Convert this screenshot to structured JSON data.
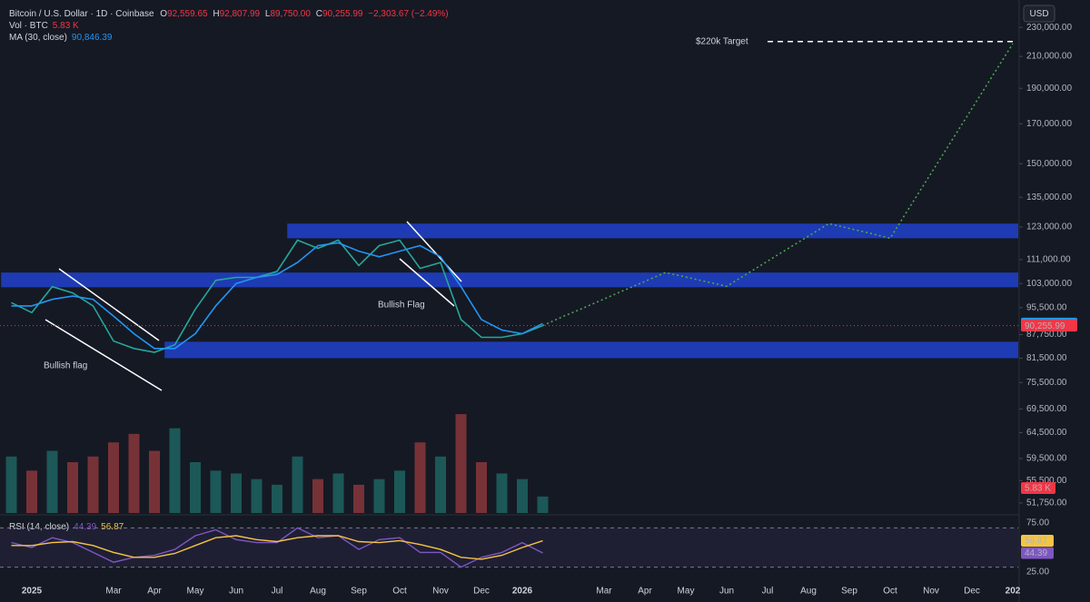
{
  "header": {
    "symbol": "Bitcoin / U.S. Dollar · 1D · Coinbase",
    "ohlc": [
      {
        "key": "O",
        "value": "92,559.65"
      },
      {
        "key": "H",
        "value": "92,807.99"
      },
      {
        "key": "L",
        "value": "89,750.00"
      },
      {
        "key": "C",
        "value": "90,255.99"
      }
    ],
    "change": "−2,303.67 (−2.49%)",
    "volume_title": "Vol · BTC",
    "volume": "5.83 K",
    "ma_title": "MA (30, close)",
    "ma": "90,846.39",
    "currency": "USD"
  },
  "chart_data": {
    "type": "line",
    "log_scale": true,
    "categories": [
      null,
      "2025",
      null,
      null,
      null,
      "Mar",
      null,
      "Apr",
      null,
      "May",
      null,
      "Jun",
      null,
      "Jul",
      null,
      "Aug",
      null,
      "Sep",
      null,
      "Oct",
      null,
      "Nov",
      null,
      "Dec",
      null,
      "2026",
      null,
      null,
      null,
      "Mar",
      null,
      "Apr",
      null,
      "May",
      null,
      "Jun",
      null,
      "Jul",
      null,
      "Aug",
      null,
      "Sep",
      null,
      "Oct",
      null,
      "Nov",
      null,
      "Dec",
      null,
      "202"
    ],
    "ylim": [
      50000,
      235000
    ],
    "yticks": [
      {
        "value": 230000,
        "label": "230,000.00"
      },
      {
        "value": 210000,
        "label": "210,000.00"
      },
      {
        "value": 190000,
        "label": "190,000.00"
      },
      {
        "value": 170000,
        "label": "170,000.00"
      },
      {
        "value": 150000,
        "label": "150,000.00"
      },
      {
        "value": 135000,
        "label": "135,000.00"
      },
      {
        "value": 123000,
        "label": "123,000.00"
      },
      {
        "value": 111000,
        "label": "111,000.00"
      },
      {
        "value": 103000,
        "label": "103,000.00"
      },
      {
        "value": 95500,
        "label": "95,500.00"
      },
      {
        "value": 87750,
        "label": "87,750.00"
      },
      {
        "value": 81500,
        "label": "81,500.00"
      },
      {
        "value": 75500,
        "label": "75,500.00"
      },
      {
        "value": 69500,
        "label": "69,500.00"
      },
      {
        "value": 64500,
        "label": "64,500.00"
      },
      {
        "value": 59500,
        "label": "59,500.00"
      },
      {
        "value": 55500,
        "label": "55,500.00"
      },
      {
        "value": 51750,
        "label": "51,750.00"
      }
    ],
    "series": [
      {
        "color": "#26a69a",
        "style": "solid",
        "values": [
          97000,
          94000,
          102000,
          100000,
          96000,
          86000,
          84000,
          83000,
          85000,
          95000,
          104000,
          105000,
          105000,
          107000,
          118000,
          115000,
          118000,
          109000,
          116000,
          118000,
          108000,
          110000,
          92000,
          87000,
          87000,
          88000,
          90255.99,
          null,
          null,
          null,
          null,
          null,
          null,
          null,
          null,
          null,
          null,
          null,
          null,
          null,
          null,
          null,
          null,
          null,
          null,
          null,
          null,
          null,
          null,
          null
        ]
      },
      {
        "color": "#2196f3",
        "style": "solid",
        "values": [
          96000,
          96000,
          98000,
          99000,
          98000,
          93000,
          88000,
          84000,
          84000,
          88000,
          96000,
          103000,
          105000,
          106000,
          110000,
          116000,
          117000,
          114000,
          112000,
          114000,
          116000,
          112000,
          102000,
          92000,
          89000,
          88000,
          90846.39,
          null,
          null,
          null,
          null,
          null,
          null,
          null,
          null,
          null,
          null,
          null,
          null,
          null,
          null,
          null,
          null,
          null,
          null,
          null,
          null,
          null,
          null,
          null
        ]
      },
      {
        "color": "#4caf50",
        "style": "dotted",
        "values": [
          null,
          null,
          null,
          null,
          null,
          null,
          null,
          null,
          null,
          null,
          null,
          null,
          null,
          null,
          null,
          null,
          null,
          null,
          null,
          null,
          null,
          null,
          null,
          null,
          null,
          null,
          90255.99,
          92900,
          95400,
          98100,
          100900,
          103700,
          106600,
          105100,
          103600,
          102100,
          106200,
          110500,
          114900,
          119500,
          124300,
          122400,
          120600,
          118700,
          131500,
          145500,
          161100,
          178300,
          197400,
          218500
        ]
      }
    ],
    "zone_color": "#1f3fc4",
    "zones": [
      {
        "start": 14,
        "low": 118700,
        "high": 124300
      },
      {
        "start": 0,
        "low": 101800,
        "high": 106600
      },
      {
        "start": 8,
        "low": 81500,
        "high": 85800
      }
    ],
    "target": {
      "label": "$220k Target",
      "value": 220000
    },
    "annotations": [
      "Bullish flag",
      "Bullish Flag"
    ],
    "volume": {
      "ylim": [
        0,
        45
      ],
      "up_color": "#26a69a",
      "down_color": "#ef5350",
      "values": [
        20,
        15,
        22,
        18,
        20,
        25,
        28,
        22,
        30,
        18,
        15,
        14,
        12,
        10,
        20,
        12,
        14,
        10,
        12,
        15,
        25,
        20,
        35,
        18,
        14,
        12,
        5.83
      ]
    },
    "rsi": {
      "title": "RSI (14, close)",
      "ylim": [
        16,
        81
      ],
      "bands": [
        30,
        70
      ],
      "yticks": [
        {
          "value": 75,
          "label": "75.00"
        },
        {
          "value": 25,
          "label": "25.00"
        }
      ],
      "series": [
        {
          "color": "#7e57c2",
          "values": [
            55,
            50,
            60,
            55,
            45,
            35,
            40,
            42,
            48,
            62,
            68,
            58,
            55,
            55,
            70,
            60,
            62,
            48,
            58,
            60,
            45,
            45,
            30,
            40,
            45,
            55,
            44.39
          ]
        },
        {
          "color": "#f5c542",
          "values": [
            52,
            52,
            55,
            56,
            52,
            45,
            40,
            40,
            44,
            52,
            60,
            62,
            58,
            56,
            60,
            62,
            62,
            56,
            55,
            57,
            53,
            48,
            40,
            38,
            42,
            50,
            56.87
          ]
        }
      ]
    }
  }
}
